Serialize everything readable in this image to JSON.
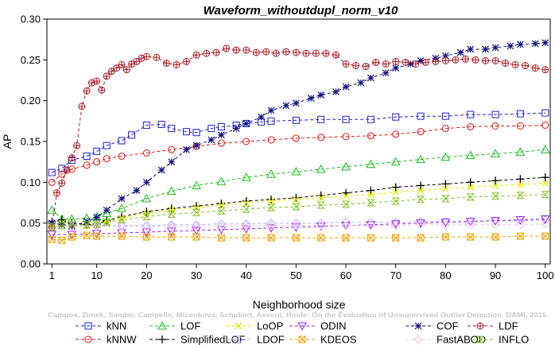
{
  "chart_data": {
    "type": "line",
    "title": "Waveform_withoutdupl_norm_v10",
    "xlabel": "Neighborhood size",
    "ylabel": "AP",
    "xlim": [
      0,
      101
    ],
    "ylim": [
      0,
      0.3
    ],
    "x_ticks": [
      1,
      10,
      20,
      30,
      40,
      50,
      60,
      70,
      80,
      90,
      100
    ],
    "y_ticks": [
      0.0,
      0.05,
      0.1,
      0.15,
      0.2,
      0.25,
      0.3
    ],
    "y_tick_labels": [
      "0.00",
      "0.05",
      "0.10",
      "0.15",
      "0.20",
      "0.25",
      "0.30"
    ],
    "grid": false,
    "legend_position": "bottom",
    "watermark": "Campos, Zimek, Sander, Campello, Micenkova, Schubert, Assent, Houle: On the Evaluation of Unsupervised Outlier Detection. DAMI, 2015.",
    "series": [
      {
        "name": "kNN",
        "color": "#1f1fd6",
        "marker": "square",
        "x": [
          1,
          3,
          5,
          8,
          10,
          12,
          15,
          17,
          20,
          23,
          25,
          28,
          30,
          33,
          35,
          38,
          40,
          43,
          45,
          50,
          55,
          60,
          65,
          70,
          75,
          80,
          85,
          90,
          95,
          100
        ],
        "y": [
          0.112,
          0.117,
          0.127,
          0.132,
          0.138,
          0.145,
          0.151,
          0.158,
          0.17,
          0.171,
          0.166,
          0.162,
          0.161,
          0.166,
          0.168,
          0.17,
          0.172,
          0.174,
          0.175,
          0.176,
          0.177,
          0.177,
          0.177,
          0.18,
          0.181,
          0.181,
          0.183,
          0.183,
          0.184,
          0.185
        ]
      },
      {
        "name": "kNNW",
        "color": "#e01010",
        "marker": "circle",
        "x": [
          1,
          3,
          5,
          8,
          10,
          12,
          15,
          20,
          25,
          30,
          35,
          40,
          45,
          50,
          55,
          60,
          65,
          70,
          75,
          80,
          85,
          90,
          95,
          100
        ],
        "y": [
          0.1,
          0.11,
          0.116,
          0.121,
          0.125,
          0.129,
          0.132,
          0.136,
          0.14,
          0.144,
          0.148,
          0.15,
          0.152,
          0.154,
          0.155,
          0.156,
          0.157,
          0.159,
          0.162,
          0.166,
          0.168,
          0.169,
          0.169,
          0.17
        ]
      },
      {
        "name": "LOF",
        "color": "#10c010",
        "marker": "triangle-up",
        "x": [
          1,
          3,
          5,
          8,
          10,
          12,
          15,
          20,
          25,
          30,
          35,
          40,
          45,
          50,
          55,
          60,
          65,
          70,
          75,
          80,
          85,
          90,
          95,
          100
        ],
        "y": [
          0.066,
          0.055,
          0.055,
          0.056,
          0.058,
          0.062,
          0.068,
          0.08,
          0.089,
          0.096,
          0.101,
          0.106,
          0.11,
          0.113,
          0.116,
          0.119,
          0.122,
          0.125,
          0.128,
          0.131,
          0.133,
          0.135,
          0.137,
          0.14
        ]
      },
      {
        "name": "SimplifiedLOF",
        "color": "#000000",
        "marker": "plus",
        "x": [
          1,
          3,
          5,
          8,
          10,
          12,
          15,
          20,
          25,
          30,
          35,
          40,
          45,
          50,
          55,
          60,
          65,
          70,
          75,
          80,
          85,
          90,
          95,
          100
        ],
        "y": [
          0.052,
          0.054,
          0.05,
          0.048,
          0.049,
          0.053,
          0.058,
          0.064,
          0.068,
          0.071,
          0.074,
          0.077,
          0.079,
          0.081,
          0.084,
          0.087,
          0.09,
          0.094,
          0.096,
          0.098,
          0.1,
          0.102,
          0.104,
          0.106
        ]
      },
      {
        "name": "LoOP",
        "color": "#e8e800",
        "marker": "x",
        "x": [
          1,
          3,
          5,
          8,
          10,
          12,
          15,
          20,
          25,
          30,
          35,
          40,
          45,
          50,
          55,
          60,
          65,
          70,
          75,
          80,
          85,
          90,
          95,
          100
        ],
        "y": [
          0.048,
          0.05,
          0.048,
          0.047,
          0.048,
          0.052,
          0.056,
          0.062,
          0.066,
          0.069,
          0.072,
          0.075,
          0.077,
          0.079,
          0.081,
          0.083,
          0.085,
          0.088,
          0.09,
          0.092,
          0.094,
          0.096,
          0.097,
          0.099
        ]
      },
      {
        "name": "LDOF",
        "color": "#b0b0ff",
        "marker": "diamond",
        "x": [
          1,
          5,
          10,
          15,
          20,
          25,
          30,
          35,
          40,
          45,
          50,
          55,
          60,
          65,
          70,
          75,
          80,
          85,
          90,
          95,
          100
        ],
        "y": [
          0.05,
          0.048,
          0.047,
          0.047,
          0.047,
          0.048,
          0.048,
          0.049,
          0.049,
          0.05,
          0.05,
          0.05,
          0.051,
          0.051,
          0.051,
          0.052,
          0.052,
          0.052,
          0.053,
          0.053,
          0.054
        ]
      },
      {
        "name": "ODIN",
        "color": "#a020f0",
        "marker": "triangle-down",
        "x": [
          1,
          5,
          10,
          15,
          20,
          25,
          30,
          35,
          40,
          45,
          50,
          55,
          60,
          65,
          70,
          75,
          80,
          85,
          90,
          95,
          100
        ],
        "y": [
          0.036,
          0.036,
          0.037,
          0.038,
          0.039,
          0.04,
          0.041,
          0.042,
          0.043,
          0.044,
          0.045,
          0.046,
          0.047,
          0.048,
          0.049,
          0.05,
          0.051,
          0.052,
          0.053,
          0.054,
          0.055
        ]
      },
      {
        "name": "KDEOS",
        "color": "#f0a000",
        "marker": "square-x",
        "x": [
          1,
          3,
          5,
          8,
          10,
          15,
          20,
          25,
          30,
          35,
          40,
          45,
          50,
          55,
          60,
          65,
          70,
          75,
          80,
          85,
          90,
          95,
          100
        ],
        "y": [
          0.03,
          0.029,
          0.033,
          0.035,
          0.034,
          0.034,
          0.033,
          0.033,
          0.033,
          0.032,
          0.032,
          0.032,
          0.032,
          0.032,
          0.032,
          0.032,
          0.032,
          0.032,
          0.033,
          0.033,
          0.033,
          0.034,
          0.034
        ]
      },
      {
        "name": "COF",
        "color": "#101080",
        "marker": "asterisk",
        "x": [
          1,
          3,
          5,
          8,
          10,
          12,
          15,
          18,
          20,
          23,
          25,
          28,
          30,
          33,
          35,
          38,
          40,
          43,
          45,
          48,
          50,
          53,
          55,
          58,
          60,
          63,
          65,
          68,
          70,
          73,
          75,
          78,
          80,
          83,
          85,
          88,
          90,
          93,
          95,
          98,
          100
        ],
        "y": [
          0.05,
          0.048,
          0.046,
          0.052,
          0.057,
          0.066,
          0.08,
          0.09,
          0.1,
          0.115,
          0.125,
          0.14,
          0.145,
          0.152,
          0.158,
          0.166,
          0.172,
          0.18,
          0.188,
          0.194,
          0.197,
          0.203,
          0.207,
          0.211,
          0.217,
          0.222,
          0.228,
          0.234,
          0.24,
          0.245,
          0.249,
          0.252,
          0.255,
          0.259,
          0.263,
          0.263,
          0.265,
          0.267,
          0.269,
          0.27,
          0.271
        ]
      },
      {
        "name": "FastABOD",
        "color": "#f4c0f4",
        "marker": "diamond",
        "x": [
          1,
          5,
          10,
          15,
          20,
          25,
          30,
          35,
          40,
          45,
          50,
          55,
          60,
          65,
          70,
          75,
          80,
          85,
          90,
          95,
          100
        ],
        "y": [
          0.045,
          0.046,
          0.046,
          0.046,
          0.046,
          0.046,
          0.046,
          0.046,
          0.047,
          0.047,
          0.047,
          0.047,
          0.047,
          0.047,
          0.047,
          0.048,
          0.048,
          0.048,
          0.048,
          0.048,
          0.049
        ]
      },
      {
        "name": "LDF",
        "color": "#b0202a",
        "marker": "circle-plus",
        "x": [
          1,
          2,
          3,
          4,
          5,
          6,
          7,
          8,
          9,
          10,
          11,
          12,
          13,
          14,
          15,
          16,
          17,
          18,
          19,
          20,
          22,
          24,
          26,
          28,
          30,
          32,
          34,
          36,
          38,
          40,
          42,
          44,
          46,
          48,
          50,
          52,
          54,
          56,
          58,
          60,
          62,
          64,
          66,
          68,
          70,
          72,
          74,
          76,
          78,
          80,
          82,
          84,
          86,
          88,
          90,
          92,
          94,
          96,
          98,
          100
        ],
        "y": [
          0.045,
          0.087,
          0.099,
          0.115,
          0.13,
          0.145,
          0.193,
          0.212,
          0.222,
          0.224,
          0.213,
          0.23,
          0.236,
          0.24,
          0.244,
          0.238,
          0.245,
          0.248,
          0.252,
          0.254,
          0.253,
          0.246,
          0.244,
          0.248,
          0.256,
          0.258,
          0.259,
          0.264,
          0.262,
          0.262,
          0.259,
          0.26,
          0.258,
          0.26,
          0.259,
          0.258,
          0.258,
          0.258,
          0.256,
          0.245,
          0.243,
          0.242,
          0.247,
          0.245,
          0.248,
          0.247,
          0.245,
          0.247,
          0.248,
          0.249,
          0.25,
          0.251,
          0.25,
          0.249,
          0.249,
          0.246,
          0.244,
          0.243,
          0.24,
          0.238
        ]
      },
      {
        "name": "INFLO",
        "color": "#80c020",
        "marker": "hourglass",
        "x": [
          1,
          3,
          5,
          8,
          10,
          12,
          15,
          20,
          25,
          30,
          35,
          40,
          45,
          50,
          55,
          60,
          65,
          70,
          75,
          80,
          85,
          90,
          95,
          100
        ],
        "y": [
          0.045,
          0.047,
          0.048,
          0.048,
          0.049,
          0.051,
          0.054,
          0.058,
          0.061,
          0.063,
          0.065,
          0.067,
          0.069,
          0.07,
          0.072,
          0.073,
          0.075,
          0.077,
          0.079,
          0.08,
          0.082,
          0.083,
          0.084,
          0.085
        ]
      }
    ]
  }
}
